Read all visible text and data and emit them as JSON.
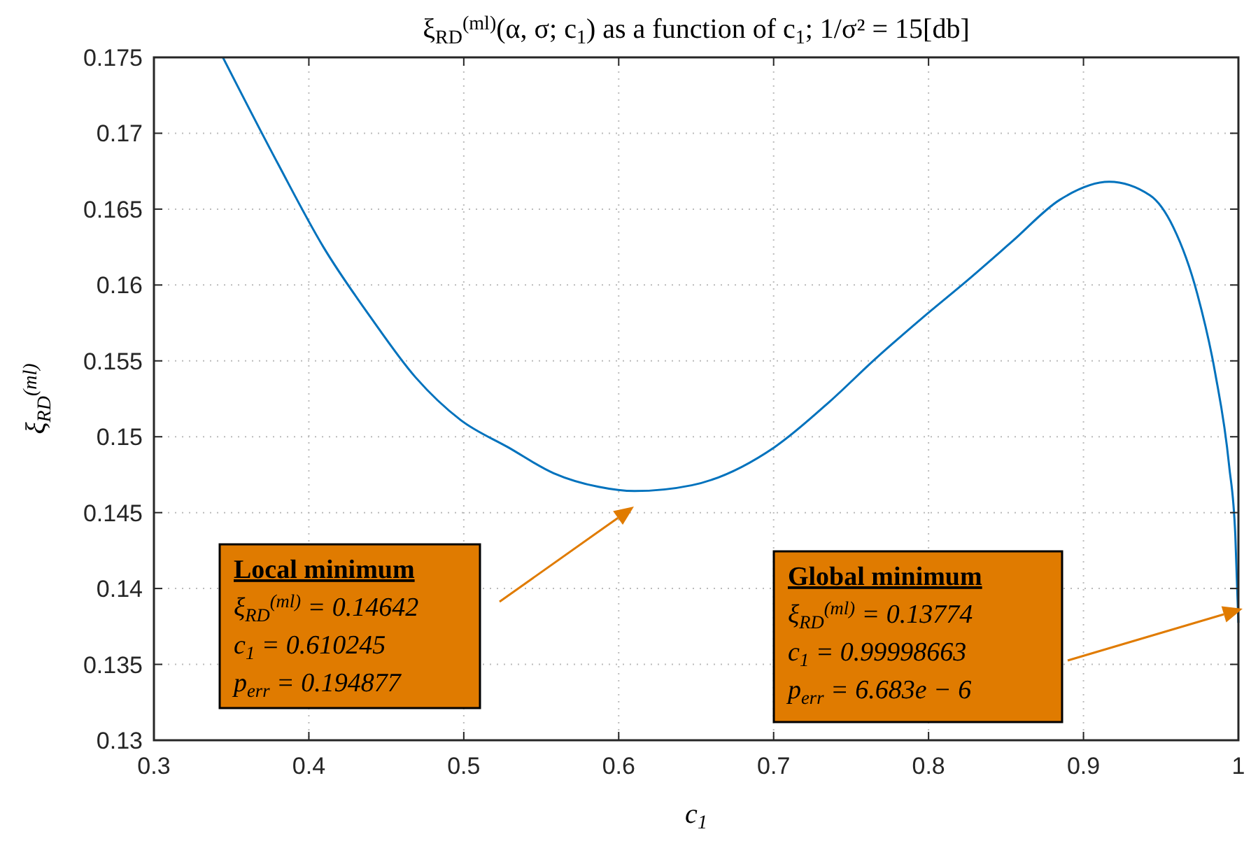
{
  "chart_data": {
    "type": "line",
    "title": "ξ$_{RD}$$^{(ml)}$(α, σ; c$_{1}$) as a function of c$_{1}$; 1/σ² = 15[db]",
    "xlabel": "c$_{1}$",
    "ylabel": "ξ$_{RD}$$^{(ml)}$",
    "x": [
      0.3445,
      0.38,
      0.4094,
      0.4397,
      0.469,
      0.498,
      0.5287,
      0.558,
      0.587,
      0.610245,
      0.647,
      0.7004,
      0.736,
      0.7653,
      0.7956,
      0.825,
      0.8543,
      0.8845,
      0.9166,
      0.943,
      0.958,
      0.9735,
      0.985,
      0.994,
      0.998,
      0.99998663
    ],
    "series": [
      {
        "color": "#0072bd",
        "values": [
          0.175,
          0.168,
          0.1625,
          0.1579,
          0.1539,
          0.1511,
          0.1493,
          0.1476,
          0.1467,
          0.14642,
          0.1468,
          0.1493,
          0.1523,
          0.1551,
          0.1578,
          0.1603,
          0.1629,
          0.1656,
          0.1668,
          0.1659,
          0.1638,
          0.1594,
          0.1542,
          0.1481,
          0.1435,
          0.13774
        ]
      }
    ],
    "xlim": [
      0.3,
      1
    ],
    "xticks": [
      {
        "value": 0.3,
        "label": "0.3"
      },
      {
        "value": 0.4,
        "label": "0.4"
      },
      {
        "value": 0.5,
        "label": "0.5"
      },
      {
        "value": 0.6,
        "label": "0.6"
      },
      {
        "value": 0.7,
        "label": "0.7"
      },
      {
        "value": 0.8,
        "label": "0.8"
      },
      {
        "value": 0.9,
        "label": "0.9"
      },
      1
    ],
    "ylim": [
      0.13,
      0.175
    ],
    "yticks": [
      0.13,
      0.135,
      0.14,
      0.145,
      0.15,
      0.155,
      0.16,
      0.165,
      0.17,
      0.175
    ],
    "grid": true,
    "line_style": "solid",
    "marker": "none",
    "annotations": [
      "Local minimum",
      "ξ$_{RD}$$^{(ml)}$ = 0.14642",
      "c$_{1}$ = 0.610245",
      "p$_{err}$ = 0.194877",
      "Global minimum",
      "ξ$_{RD}$$^{(ml)}$ = 0.13774",
      "c$_{1}$ = 0.99998663",
      "p$_{err}$ = 6.683e − 6"
    ]
  }
}
